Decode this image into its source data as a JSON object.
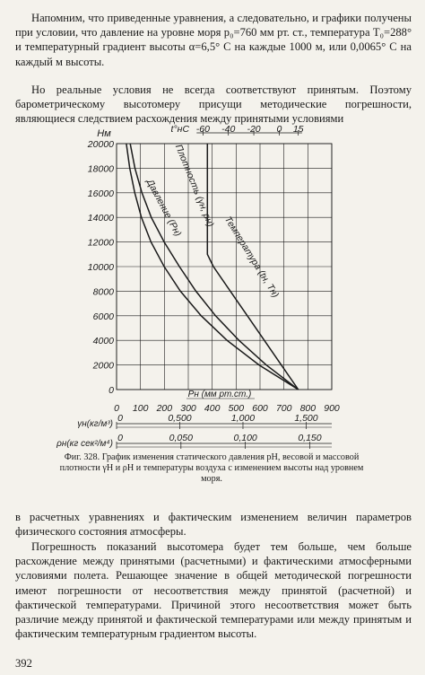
{
  "paragraphs": {
    "p1": "Напомним, что приведенные уравнения, а следовательно, и графики получены при условии, что давление на уровне моря p₀=760 мм рт. ст., температура T₀=288° и температурный градиент высоты α=6,5° C на каждые 1000 м, или 0,0065° C на каждый м высоты.",
    "p2": "Но реальные условия не всегда соответствуют принятым. Поэтому барометрическому высотомеру присущи методические погрешности, являющиеся следствием расхождения между принятыми условиями",
    "p3": "в расчетных уравнениях и фактическим изменением величин параметров физического состояния атмосферы.",
    "p4": "Погрешность показаний высотомера будет тем больше, чем больше расхождение между принятыми (расчетными) и фактическими атмосферными условиями полета. Решающее значение в общей методической погрешности имеют погрешности от несоответствия между принятой (расчетной) и фактической температурами. Причиной этого несоответствия может быть различие между принятой и фактической температурами или между принятым и фактическим температурным градиентом высоты."
  },
  "caption": "Фиг. 328. График изменения статического давления pH, весовой и массовой плотности γH и ρH и температуры воздуха с изменением высоты над уровнем моря.",
  "page_number": "392",
  "chart_data": {
    "type": "line",
    "ylabel": "Hм",
    "y_ticks": [
      "0",
      "2000",
      "4000",
      "6000",
      "8000",
      "10000",
      "12000",
      "14000",
      "16000",
      "18000",
      "20000"
    ],
    "ylim": [
      0,
      20000
    ],
    "x_axis_pressure": {
      "label": "Pн (мм рт.ст.)",
      "ticks": [
        "0",
        "100",
        "200",
        "300",
        "400",
        "500",
        "600",
        "700",
        "800",
        "900"
      ],
      "range": [
        0,
        900
      ]
    },
    "x_axis_weight_density": {
      "label": "γн(кг/м³)",
      "ticks": [
        "0",
        "0,500",
        "1,000",
        "1,500"
      ],
      "values": [
        0,
        0.5,
        1.0,
        1.5
      ]
    },
    "x_axis_mass_density": {
      "label": "ρн(кг сек²/м⁴)",
      "ticks": [
        "0",
        "0,050",
        "0,100",
        "0,150"
      ],
      "values": [
        0,
        0.05,
        0.1,
        0.15
      ]
    },
    "x_axis_temperature": {
      "label": "t°нC",
      "ticks": [
        "-60",
        "-40",
        "-20",
        "0",
        "15"
      ],
      "values": [
        -60,
        -40,
        -20,
        0,
        15
      ]
    },
    "grid": true,
    "series": [
      {
        "name": "Давление (Pн)",
        "x": [
          760,
          596,
          462,
          354,
          267,
          199,
          144,
          104,
          76,
          55,
          41
        ],
        "y": [
          0,
          2000,
          4000,
          6000,
          8000,
          10000,
          12000,
          14000,
          16000,
          18000,
          20000
        ]
      },
      {
        "name": "Плотность (γн, ρн)",
        "x": [
          760,
          626,
          512,
          414,
          332,
          263,
          199,
          145,
          106,
          77,
          57
        ],
        "y": [
          0,
          2000,
          4000,
          6000,
          8000,
          10000,
          12000,
          14000,
          16000,
          18000,
          20000
        ]
      },
      {
        "name": "Температура (tн, Tн)",
        "x": [
          760,
          689,
          618,
          547,
          476,
          405,
          380,
          380,
          380,
          380,
          380
        ],
        "y": [
          0,
          2000,
          4000,
          6000,
          8000,
          10000,
          11000,
          14000,
          16000,
          18000,
          20000
        ]
      }
    ]
  }
}
